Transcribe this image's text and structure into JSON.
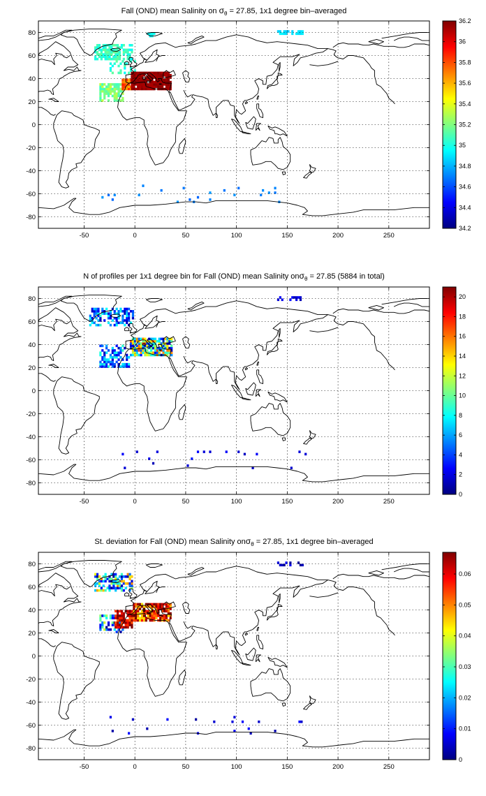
{
  "chart_data": [
    {
      "type": "heatmap",
      "title_pre": "Fall (OND) mean Salinity on ",
      "title_sym": "σ",
      "title_sub": "θ",
      "title_post": " = 27.85, 1x1 degree bin–averaged",
      "xlim": [
        -95,
        290
      ],
      "ylim": [
        -90,
        90
      ],
      "xticks": [
        -50,
        0,
        50,
        100,
        150,
        200,
        250
      ],
      "yticks": [
        -80,
        -60,
        -40,
        -20,
        0,
        20,
        40,
        60,
        80
      ],
      "grid": true,
      "colorbar": {
        "min": 34.2,
        "max": 36.2,
        "ticks": [
          34.2,
          34.4,
          34.6,
          34.8,
          35,
          35.2,
          35.4,
          35.6,
          35.8,
          36,
          36.2
        ],
        "colormap": "jet"
      },
      "regions": [
        {
          "lon": [
            -40,
            -2
          ],
          "lat": [
            56,
            70
          ],
          "value": 35.05,
          "spread": 0.12,
          "density": 0.75
        },
        {
          "lon": [
            -25,
            0
          ],
          "lat": [
            44,
            56
          ],
          "value": 35.05,
          "spread": 0.1,
          "density": 0.25
        },
        {
          "lon": [
            -35,
            -12
          ],
          "lat": [
            20,
            36
          ],
          "value": 35.2,
          "spread": 0.15,
          "density": 0.8
        },
        {
          "lon": [
            -13,
            -4
          ],
          "lat": [
            30,
            40
          ],
          "value": 35.75,
          "spread": 0.15,
          "density": 0.95
        },
        {
          "lon": [
            -4,
            36
          ],
          "lat": [
            30,
            45
          ],
          "value": 36.15,
          "spread": 0.05,
          "density": 0.95
        },
        {
          "lon": [
            12,
            20
          ],
          "lat": [
            76,
            80
          ],
          "value": 34.95,
          "spread": 0.05,
          "density": 0.6
        },
        {
          "lon": [
            140,
            165
          ],
          "lat": [
            78,
            82
          ],
          "value": 34.9,
          "spread": 0.05,
          "density": 0.5
        },
        {
          "lon": [
            -35,
            170
          ],
          "lat": [
            -68,
            -52
          ],
          "value": 34.7,
          "spread": 0.05,
          "density": 0.02
        }
      ]
    },
    {
      "type": "heatmap",
      "title_pre": "N of profiles per 1x1 degree bin for Fall (OND) mean Salinity on",
      "title_sym": "σ",
      "title_sub": "θ",
      "title_post": " = 27.85 (5884 in total)",
      "xlim": [
        -95,
        290
      ],
      "ylim": [
        -90,
        90
      ],
      "xticks": [
        -50,
        0,
        50,
        100,
        150,
        200,
        250
      ],
      "yticks": [
        -80,
        -60,
        -40,
        -20,
        0,
        20,
        40,
        60,
        80
      ],
      "grid": true,
      "colorbar": {
        "min": 0,
        "max": 21,
        "ticks": [
          0,
          2,
          4,
          6,
          8,
          10,
          12,
          14,
          16,
          18,
          20
        ],
        "colormap": "jet"
      },
      "regions": [
        {
          "lon": [
            -45,
            -2
          ],
          "lat": [
            56,
            72
          ],
          "value": 5,
          "spread": 4,
          "density": 0.5
        },
        {
          "lon": [
            -35,
            -5
          ],
          "lat": [
            20,
            40
          ],
          "value": 5,
          "spread": 4,
          "density": 0.55
        },
        {
          "lon": [
            -5,
            36
          ],
          "lat": [
            30,
            45
          ],
          "value": 9,
          "spread": 8,
          "density": 0.85
        },
        {
          "lon": [
            140,
            165
          ],
          "lat": [
            78,
            82
          ],
          "value": 2,
          "spread": 1,
          "density": 0.4
        },
        {
          "lon": [
            -35,
            170
          ],
          "lat": [
            -68,
            -52
          ],
          "value": 2,
          "spread": 1,
          "density": 0.02
        }
      ]
    },
    {
      "type": "heatmap",
      "title_pre": "St. deviation for Fall (OND) mean Salinity on",
      "title_sym": "σ",
      "title_sub": "θ",
      "title_post": " = 27.85, 1x1 degree bin–averaged",
      "xlim": [
        -95,
        290
      ],
      "ylim": [
        -90,
        90
      ],
      "xticks": [
        -50,
        0,
        50,
        100,
        150,
        200,
        250
      ],
      "yticks": [
        -80,
        -60,
        -40,
        -20,
        0,
        20,
        40,
        60,
        80
      ],
      "grid": true,
      "colorbar": {
        "min": 0,
        "max": 0.067,
        "ticks": [
          0,
          0.01,
          0.02,
          0.03,
          0.04,
          0.05,
          0.06
        ],
        "colormap": "jet"
      },
      "regions": [
        {
          "lon": [
            -40,
            -2
          ],
          "lat": [
            56,
            72
          ],
          "value": 0.025,
          "spread": 0.025,
          "density": 0.6
        },
        {
          "lon": [
            -35,
            -12
          ],
          "lat": [
            20,
            36
          ],
          "value": 0.02,
          "spread": 0.02,
          "density": 0.5
        },
        {
          "lon": [
            -20,
            -2
          ],
          "lat": [
            24,
            40
          ],
          "value": 0.062,
          "spread": 0.01,
          "density": 0.9
        },
        {
          "lon": [
            -2,
            36
          ],
          "lat": [
            30,
            45
          ],
          "value": 0.058,
          "spread": 0.015,
          "density": 0.85
        },
        {
          "lon": [
            140,
            165
          ],
          "lat": [
            78,
            82
          ],
          "value": 0.005,
          "spread": 0.004,
          "density": 0.4
        },
        {
          "lon": [
            -35,
            170
          ],
          "lat": [
            -68,
            -52
          ],
          "value": 0.005,
          "spread": 0.004,
          "density": 0.02
        }
      ]
    }
  ]
}
